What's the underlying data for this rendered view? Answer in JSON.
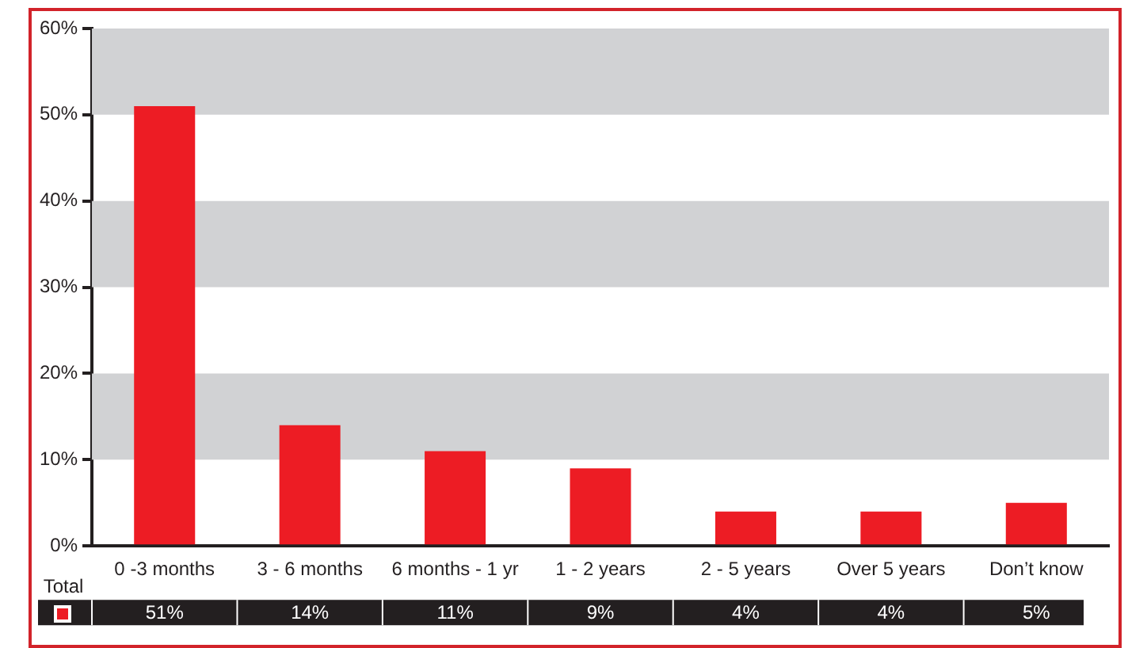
{
  "chart_data": {
    "type": "bar",
    "categories": [
      "0 -3 months",
      "3 - 6 months",
      "6 months - 1 yr",
      "1 - 2 years",
      "2 - 5 years",
      "Over 5 years",
      "Don’t know"
    ],
    "series": [
      {
        "name": "Total",
        "color": "#ed1c24",
        "values": [
          51,
          14,
          11,
          9,
          4,
          4,
          5
        ],
        "value_labels": [
          "51%",
          "14%",
          "11%",
          "9%",
          "4%",
          "4%",
          "5%"
        ]
      }
    ],
    "ylim": [
      0,
      60
    ],
    "yticks": [
      {
        "value": 0,
        "label": "0%"
      },
      {
        "value": 10,
        "label": "10%"
      },
      {
        "value": 20,
        "label": "20%"
      },
      {
        "value": 30,
        "label": "30%"
      },
      {
        "value": 40,
        "label": "40%"
      },
      {
        "value": 50,
        "label": "50%"
      },
      {
        "value": 60,
        "label": "60%"
      }
    ],
    "bands": [
      {
        "axis": "y",
        "from": 10,
        "to": 20,
        "color": "#d1d2d4"
      },
      {
        "axis": "y",
        "from": 30,
        "to": 40,
        "color": "#d1d2d4"
      },
      {
        "axis": "y",
        "from": 50,
        "to": 60,
        "color": "#d1d2d4"
      }
    ],
    "grid": false,
    "legend": "bottom"
  }
}
